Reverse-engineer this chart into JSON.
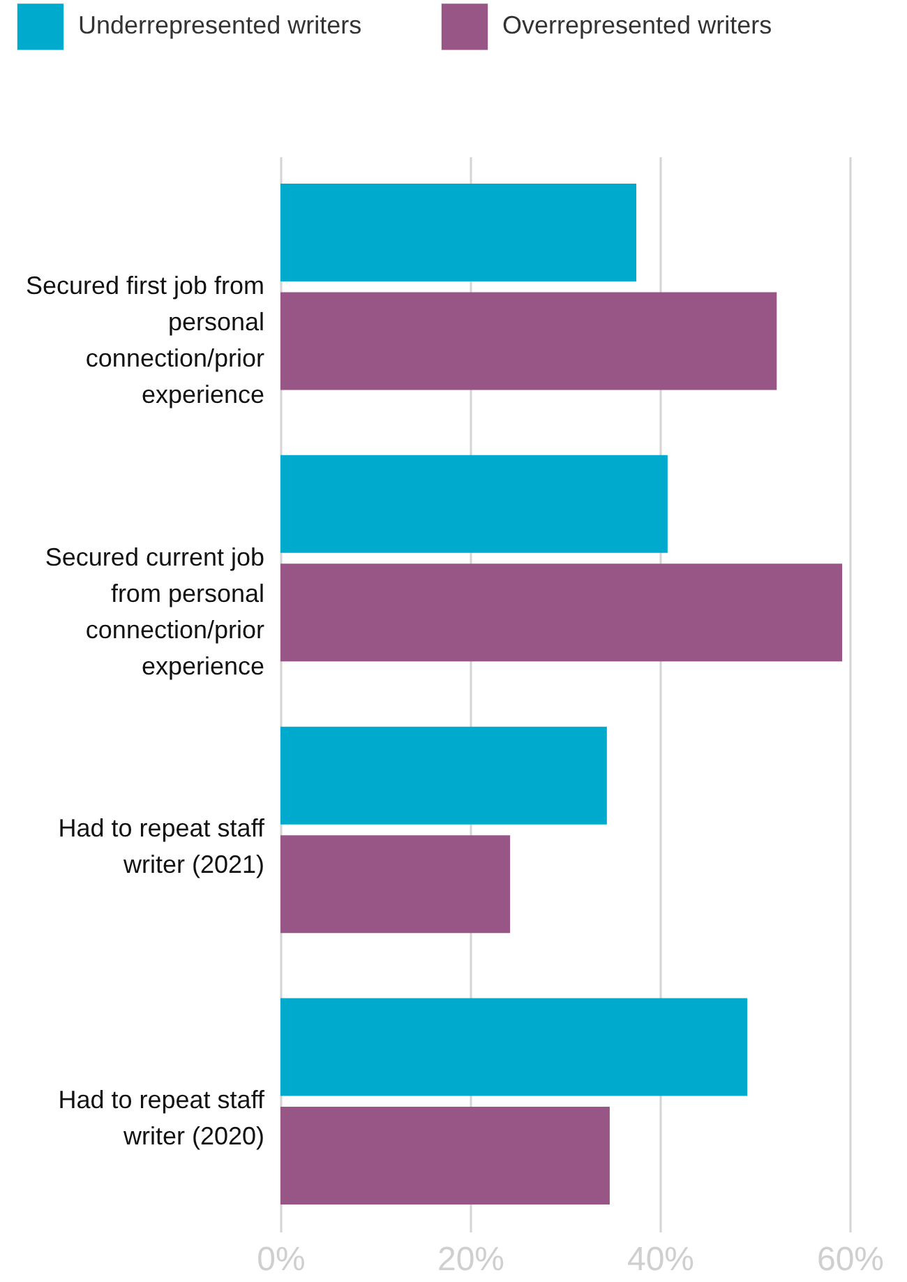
{
  "chart_data": {
    "type": "bar",
    "orientation": "horizontal",
    "categories": [
      "Secured first job from personal connection/prior experience",
      "Secured current job from personal connection/prior experience",
      "Had to repeat staff writer (2021)",
      "Had to repeat staff writer (2020)"
    ],
    "series": [
      {
        "name": "Underrepresented writers",
        "color": "#00aacc",
        "values": [
          37.5,
          40.8,
          34.4,
          49.2
        ]
      },
      {
        "name": "Overrepresented writers",
        "color": "#985686",
        "values": [
          52.3,
          59.2,
          24.2,
          34.7
        ]
      }
    ],
    "xlim": [
      0,
      60
    ],
    "xticks": [
      {
        "value": 0,
        "label": "0%"
      },
      {
        "value": 20,
        "label": "20%"
      },
      {
        "value": 40,
        "label": "40%"
      },
      {
        "value": 60,
        "label": "60%"
      }
    ],
    "grid": "x",
    "legend": "top left"
  }
}
